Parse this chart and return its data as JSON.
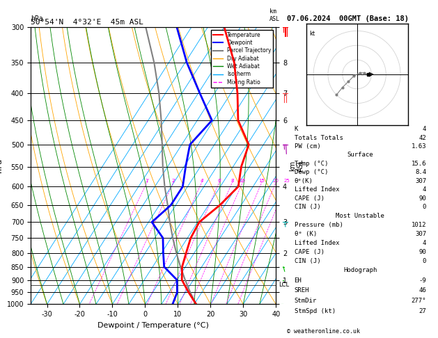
{
  "title_left": "50°54'N  4°32'E  45m ASL",
  "title_right": "07.06.2024  00GMT (Base: 18)",
  "xlabel": "Dewpoint / Temperature (°C)",
  "ylabel_left": "hPa",
  "temp_color": "#ff0000",
  "dewp_color": "#0000ff",
  "parcel_color": "#808080",
  "dry_adiabat_color": "#ffa500",
  "wet_adiabat_color": "#008800",
  "isotherm_color": "#00aaff",
  "mixing_ratio_color": "#ff00ff",
  "background_color": "#ffffff",
  "temp_data": [
    [
      1000,
      15.6
    ],
    [
      950,
      11.0
    ],
    [
      900,
      6.5
    ],
    [
      850,
      4.0
    ],
    [
      800,
      2.5
    ],
    [
      750,
      1.0
    ],
    [
      700,
      0.5
    ],
    [
      650,
      3.5
    ],
    [
      600,
      5.5
    ],
    [
      550,
      2.5
    ],
    [
      500,
      0.5
    ],
    [
      450,
      -7.5
    ],
    [
      400,
      -13.0
    ],
    [
      350,
      -20.0
    ],
    [
      300,
      -30.0
    ]
  ],
  "dewp_data": [
    [
      1000,
      8.4
    ],
    [
      950,
      7.5
    ],
    [
      900,
      5.0
    ],
    [
      850,
      -1.5
    ],
    [
      800,
      -4.5
    ],
    [
      750,
      -7.5
    ],
    [
      700,
      -14.0
    ],
    [
      650,
      -11.5
    ],
    [
      600,
      -11.5
    ],
    [
      550,
      -14.5
    ],
    [
      500,
      -17.5
    ],
    [
      450,
      -15.5
    ],
    [
      400,
      -24.5
    ],
    [
      350,
      -34.5
    ],
    [
      300,
      -44.5
    ]
  ],
  "parcel_data": [
    [
      1000,
      15.6
    ],
    [
      950,
      11.5
    ],
    [
      900,
      7.5
    ],
    [
      850,
      3.5
    ],
    [
      800,
      -0.5
    ],
    [
      750,
      -4.5
    ],
    [
      700,
      -8.5
    ],
    [
      650,
      -12.5
    ],
    [
      600,
      -17.0
    ],
    [
      550,
      -21.5
    ],
    [
      500,
      -26.0
    ],
    [
      450,
      -31.0
    ],
    [
      400,
      -37.0
    ],
    [
      350,
      -44.5
    ],
    [
      300,
      -54.0
    ]
  ],
  "pressure_ticks": [
    300,
    350,
    400,
    450,
    500,
    550,
    600,
    650,
    700,
    750,
    800,
    850,
    900,
    950,
    1000
  ],
  "temp_range": [
    -35,
    40
  ],
  "mixing_ratio_lines": [
    1,
    2,
    4,
    6,
    8,
    10,
    15,
    20,
    25
  ],
  "km_labels": {
    "300": "",
    "350": "8",
    "400": "7",
    "450": "6",
    "500": "",
    "550": "",
    "600": "4",
    "650": "",
    "700": "3",
    "750": "",
    "800": "2",
    "850": "",
    "900": "1",
    "950": "",
    "1000": ""
  },
  "lcl_pressure": 920,
  "stats": {
    "K": 4,
    "Totals_Totals": 42,
    "PW_cm": 1.63,
    "Surface_Temp": 15.6,
    "Surface_Dewp": 8.4,
    "Surface_theta_e": 307,
    "Surface_Lifted_Index": 4,
    "Surface_CAPE": 90,
    "Surface_CIN": 0,
    "MU_Pressure": 1012,
    "MU_theta_e": 307,
    "MU_Lifted_Index": 4,
    "MU_CAPE": 90,
    "MU_CIN": 0,
    "EH": -9,
    "SREH": 46,
    "StmDir": 277,
    "StmSpd": 27
  },
  "copyright": "© weatheronline.co.uk",
  "wind_barbs": [
    {
      "pressure": 300,
      "spd": 35,
      "dir": 270,
      "color": "#ff0000"
    },
    {
      "pressure": 400,
      "spd": 20,
      "dir": 270,
      "color": "#ff4444"
    },
    {
      "pressure": 500,
      "spd": 15,
      "dir": 260,
      "color": "#aa00aa"
    },
    {
      "pressure": 700,
      "spd": 8,
      "dir": 250,
      "color": "#00aaaa"
    },
    {
      "pressure": 850,
      "spd": 5,
      "dir": 200,
      "color": "#00bb00"
    },
    {
      "pressure": 900,
      "spd": 4,
      "dir": 190,
      "color": "#00bb00"
    },
    {
      "pressure": 950,
      "spd": 3,
      "dir": 180,
      "color": "#00bb00"
    },
    {
      "pressure": 1000,
      "spd": 3,
      "dir": 170,
      "color": "#00bb00"
    }
  ]
}
